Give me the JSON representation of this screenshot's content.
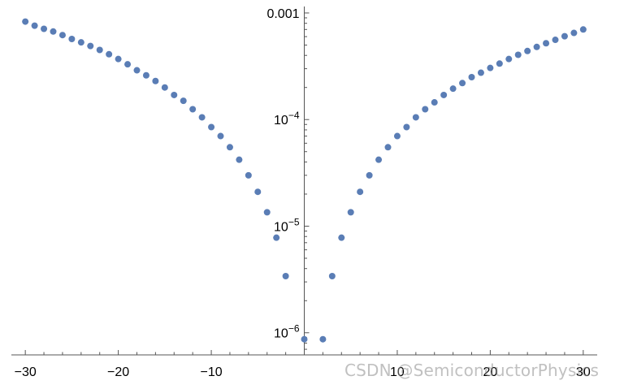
{
  "chart_data": {
    "type": "scatter",
    "title": "",
    "xlabel": "",
    "ylabel": "",
    "xlim": [
      -31.5,
      31.5
    ],
    "ylim": [
      6.2e-07,
      0.00115
    ],
    "y_scale": "log",
    "grid": false,
    "legend": "none",
    "marker_color": "#5a7db5",
    "x_ticks": [
      {
        "value": -30,
        "label": "−30"
      },
      {
        "value": -20,
        "label": "−20"
      },
      {
        "value": -10,
        "label": "−10"
      },
      {
        "value": 10,
        "label": "10"
      },
      {
        "value": 20,
        "label": "20"
      },
      {
        "value": 30,
        "label": "30"
      }
    ],
    "y_ticks": [
      {
        "value": 1e-06,
        "base": "10",
        "exp": "−6",
        "label": ""
      },
      {
        "value": 1e-05,
        "base": "10",
        "exp": "−5",
        "label": ""
      },
      {
        "value": 0.0001,
        "base": "10",
        "exp": "−4",
        "label": ""
      },
      {
        "value": 0.001,
        "base": "",
        "exp": "",
        "label": "0.001"
      }
    ],
    "series": [
      {
        "points": [
          [
            -30,
            0.00083
          ],
          [
            -29,
            0.00076
          ],
          [
            -28,
            0.00071
          ],
          [
            -27,
            0.00067
          ],
          [
            -26,
            0.00062
          ],
          [
            -25,
            0.00057
          ],
          [
            -24,
            0.00053
          ],
          [
            -23,
            0.00049
          ],
          [
            -22,
            0.00045
          ],
          [
            -21,
            0.00041
          ],
          [
            -20,
            0.00037
          ],
          [
            -19,
            0.00033
          ],
          [
            -18,
            0.00029
          ],
          [
            -17,
            0.00026
          ],
          [
            -16,
            0.00023
          ],
          [
            -15,
            0.0002
          ],
          [
            -14,
            0.00017
          ],
          [
            -13,
            0.00015
          ],
          [
            -12,
            0.000125
          ],
          [
            -11,
            0.000105
          ],
          [
            -10,
            8.5e-05
          ],
          [
            -9,
            7e-05
          ],
          [
            -8,
            5.5e-05
          ],
          [
            -7,
            4.2e-05
          ],
          [
            -6,
            3e-05
          ],
          [
            -5,
            2.1e-05
          ],
          [
            -4,
            1.35e-05
          ],
          [
            -3,
            7.8e-06
          ],
          [
            -2,
            3.4e-06
          ],
          [
            0,
            8.7e-07
          ],
          [
            2,
            8.7e-07
          ],
          [
            3,
            3.4e-06
          ],
          [
            4,
            7.8e-06
          ],
          [
            5,
            1.35e-05
          ],
          [
            6,
            2.1e-05
          ],
          [
            7,
            3e-05
          ],
          [
            8,
            4.2e-05
          ],
          [
            9,
            5.5e-05
          ],
          [
            10,
            7e-05
          ],
          [
            11,
            8.5e-05
          ],
          [
            12,
            0.000105
          ],
          [
            13,
            0.000125
          ],
          [
            14,
            0.000145
          ],
          [
            15,
            0.00017
          ],
          [
            16,
            0.000195
          ],
          [
            17,
            0.00022
          ],
          [
            18,
            0.00025
          ],
          [
            19,
            0.000275
          ],
          [
            20,
            0.000305
          ],
          [
            21,
            0.000335
          ],
          [
            22,
            0.00037
          ],
          [
            23,
            0.000405
          ],
          [
            24,
            0.00044
          ],
          [
            25,
            0.00048
          ],
          [
            26,
            0.00052
          ],
          [
            27,
            0.00056
          ],
          [
            28,
            0.000605
          ],
          [
            29,
            0.00065
          ],
          [
            30,
            0.0007
          ]
        ]
      }
    ]
  },
  "watermark": "CSDN @SemiconductorPhysics"
}
